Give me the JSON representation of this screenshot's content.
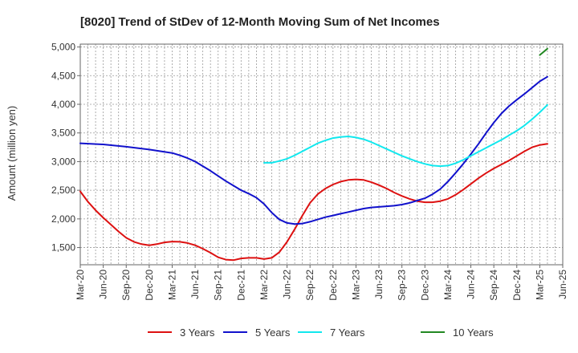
{
  "chart_data": {
    "type": "line",
    "title": "[8020]  Trend of StDev of 12-Month Moving Sum of Net Incomes",
    "ylabel": "Amount (million yen)",
    "xlabel": "",
    "ylim": [
      1200,
      5050
    ],
    "yticks": [
      1500,
      2000,
      2500,
      3000,
      3500,
      4000,
      4500,
      5000
    ],
    "ytick_labels": [
      "1,500",
      "2,000",
      "2,500",
      "3,000",
      "3,500",
      "4,000",
      "4,500",
      "5,000"
    ],
    "x_ticks": [
      "Mar-20",
      "Jun-20",
      "Sep-20",
      "Dec-20",
      "Mar-21",
      "Jun-21",
      "Sep-21",
      "Dec-21",
      "Mar-22",
      "Jun-22",
      "Sep-22",
      "Dec-22",
      "Mar-23",
      "Jun-23",
      "Sep-23",
      "Dec-23",
      "Mar-24",
      "Jun-24",
      "Sep-24",
      "Dec-24",
      "Mar-25",
      "Jun-25"
    ],
    "grid": true,
    "legend_position": "bottom",
    "series": [
      {
        "name": "3 Years",
        "color": "#dd1111",
        "points": [
          [
            "Mar-20",
            2480
          ],
          [
            "Apr-20",
            2300
          ],
          [
            "May-20",
            2150
          ],
          [
            "Jun-20",
            2020
          ],
          [
            "Jul-20",
            1900
          ],
          [
            "Aug-20",
            1780
          ],
          [
            "Sep-20",
            1670
          ],
          [
            "Oct-20",
            1600
          ],
          [
            "Nov-20",
            1560
          ],
          [
            "Dec-20",
            1540
          ],
          [
            "Jan-21",
            1560
          ],
          [
            "Feb-21",
            1590
          ],
          [
            "Mar-21",
            1605
          ],
          [
            "Apr-21",
            1600
          ],
          [
            "May-21",
            1580
          ],
          [
            "Jun-21",
            1540
          ],
          [
            "Jul-21",
            1480
          ],
          [
            "Aug-21",
            1410
          ],
          [
            "Sep-21",
            1330
          ],
          [
            "Oct-21",
            1290
          ],
          [
            "Nov-21",
            1280
          ],
          [
            "Dec-21",
            1310
          ],
          [
            "Jan-22",
            1320
          ],
          [
            "Feb-22",
            1320
          ],
          [
            "Mar-22",
            1300
          ],
          [
            "Apr-22",
            1320
          ],
          [
            "May-22",
            1420
          ],
          [
            "Jun-22",
            1600
          ],
          [
            "Jul-22",
            1820
          ],
          [
            "Aug-22",
            2060
          ],
          [
            "Sep-22",
            2280
          ],
          [
            "Oct-22",
            2430
          ],
          [
            "Nov-22",
            2530
          ],
          [
            "Dec-22",
            2600
          ],
          [
            "Jan-23",
            2650
          ],
          [
            "Feb-23",
            2680
          ],
          [
            "Mar-23",
            2690
          ],
          [
            "Apr-23",
            2680
          ],
          [
            "May-23",
            2640
          ],
          [
            "Jun-23",
            2590
          ],
          [
            "Jul-23",
            2530
          ],
          [
            "Aug-23",
            2460
          ],
          [
            "Sep-23",
            2400
          ],
          [
            "Oct-23",
            2350
          ],
          [
            "Nov-23",
            2310
          ],
          [
            "Dec-23",
            2290
          ],
          [
            "Jan-24",
            2290
          ],
          [
            "Feb-24",
            2310
          ],
          [
            "Mar-24",
            2350
          ],
          [
            "Apr-24",
            2420
          ],
          [
            "May-24",
            2510
          ],
          [
            "Jun-24",
            2610
          ],
          [
            "Jul-24",
            2710
          ],
          [
            "Aug-24",
            2800
          ],
          [
            "Sep-24",
            2880
          ],
          [
            "Oct-24",
            2950
          ],
          [
            "Nov-24",
            3020
          ],
          [
            "Dec-24",
            3100
          ],
          [
            "Jan-25",
            3180
          ],
          [
            "Feb-25",
            3250
          ],
          [
            "Mar-25",
            3290
          ],
          [
            "Apr-25",
            3310
          ]
        ]
      },
      {
        "name": "5 Years",
        "color": "#1111cc",
        "points": [
          [
            "Mar-20",
            3320
          ],
          [
            "Jun-20",
            3300
          ],
          [
            "Sep-20",
            3260
          ],
          [
            "Dec-20",
            3210
          ],
          [
            "Mar-21",
            3150
          ],
          [
            "Apr-21",
            3110
          ],
          [
            "May-21",
            3060
          ],
          [
            "Jun-21",
            3000
          ],
          [
            "Jul-21",
            2920
          ],
          [
            "Aug-21",
            2840
          ],
          [
            "Sep-21",
            2750
          ],
          [
            "Oct-21",
            2660
          ],
          [
            "Nov-21",
            2580
          ],
          [
            "Dec-21",
            2500
          ],
          [
            "Jan-22",
            2440
          ],
          [
            "Feb-22",
            2370
          ],
          [
            "Mar-22",
            2260
          ],
          [
            "Apr-22",
            2110
          ],
          [
            "May-22",
            1990
          ],
          [
            "Jun-22",
            1930
          ],
          [
            "Jul-22",
            1910
          ],
          [
            "Aug-22",
            1920
          ],
          [
            "Sep-22",
            1950
          ],
          [
            "Oct-22",
            1990
          ],
          [
            "Nov-22",
            2030
          ],
          [
            "Dec-22",
            2060
          ],
          [
            "Jan-23",
            2090
          ],
          [
            "Feb-23",
            2120
          ],
          [
            "Mar-23",
            2150
          ],
          [
            "Apr-23",
            2180
          ],
          [
            "May-23",
            2200
          ],
          [
            "Jun-23",
            2210
          ],
          [
            "Jul-23",
            2220
          ],
          [
            "Aug-23",
            2230
          ],
          [
            "Sep-23",
            2250
          ],
          [
            "Oct-23",
            2280
          ],
          [
            "Nov-23",
            2320
          ],
          [
            "Dec-23",
            2360
          ],
          [
            "Jan-24",
            2430
          ],
          [
            "Feb-24",
            2520
          ],
          [
            "Mar-24",
            2650
          ],
          [
            "Apr-24",
            2800
          ],
          [
            "May-24",
            2960
          ],
          [
            "Jun-24",
            3130
          ],
          [
            "Jul-24",
            3310
          ],
          [
            "Aug-24",
            3500
          ],
          [
            "Sep-24",
            3680
          ],
          [
            "Oct-24",
            3840
          ],
          [
            "Nov-24",
            3970
          ],
          [
            "Dec-24",
            4080
          ],
          [
            "Jan-25",
            4180
          ],
          [
            "Feb-25",
            4290
          ],
          [
            "Mar-25",
            4400
          ],
          [
            "Apr-25",
            4480
          ]
        ]
      },
      {
        "name": "7 Years",
        "color": "#11e8ee",
        "points": [
          [
            "Mar-22",
            2980
          ],
          [
            "Apr-22",
            2980
          ],
          [
            "May-22",
            3010
          ],
          [
            "Jun-22",
            3050
          ],
          [
            "Jul-22",
            3110
          ],
          [
            "Aug-22",
            3180
          ],
          [
            "Sep-22",
            3250
          ],
          [
            "Oct-22",
            3320
          ],
          [
            "Nov-22",
            3370
          ],
          [
            "Dec-22",
            3410
          ],
          [
            "Jan-23",
            3430
          ],
          [
            "Feb-23",
            3440
          ],
          [
            "Mar-23",
            3420
          ],
          [
            "Apr-23",
            3390
          ],
          [
            "May-23",
            3340
          ],
          [
            "Jun-23",
            3280
          ],
          [
            "Jul-23",
            3220
          ],
          [
            "Aug-23",
            3160
          ],
          [
            "Sep-23",
            3100
          ],
          [
            "Oct-23",
            3050
          ],
          [
            "Nov-23",
            3000
          ],
          [
            "Dec-23",
            2960
          ],
          [
            "Jan-24",
            2930
          ],
          [
            "Feb-24",
            2920
          ],
          [
            "Mar-24",
            2930
          ],
          [
            "Apr-24",
            2970
          ],
          [
            "May-24",
            3030
          ],
          [
            "Jun-24",
            3100
          ],
          [
            "Jul-24",
            3170
          ],
          [
            "Aug-24",
            3240
          ],
          [
            "Sep-24",
            3310
          ],
          [
            "Oct-24",
            3380
          ],
          [
            "Nov-24",
            3460
          ],
          [
            "Dec-24",
            3540
          ],
          [
            "Jan-25",
            3630
          ],
          [
            "Feb-25",
            3740
          ],
          [
            "Mar-25",
            3860
          ],
          [
            "Apr-25",
            3990
          ]
        ]
      },
      {
        "name": "10 Years",
        "color": "#228822",
        "points": [
          [
            "Mar-25",
            4860
          ],
          [
            "Apr-25",
            4970
          ]
        ]
      }
    ]
  }
}
